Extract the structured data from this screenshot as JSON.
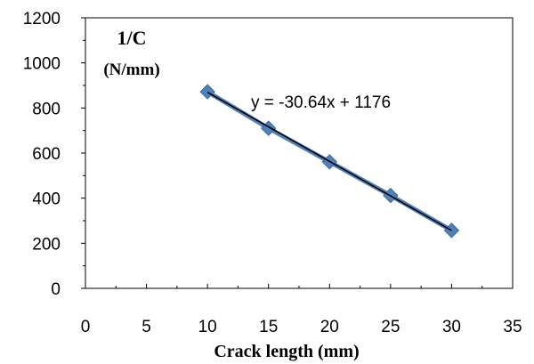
{
  "chart_data": {
    "type": "scatter",
    "title": "",
    "ylabel_line1": "1/C",
    "ylabel_line2": "(N/mm)",
    "xlabel": "Crack length (mm)",
    "xlim": [
      0,
      35
    ],
    "ylim": [
      0,
      1200
    ],
    "x_ticks": [
      0,
      5,
      10,
      15,
      20,
      25,
      30,
      35
    ],
    "y_ticks": [
      0,
      200,
      400,
      600,
      800,
      1000,
      1200
    ],
    "grid": false,
    "legend": "none",
    "series": [
      {
        "name": "",
        "marker": "diamond",
        "color": "#4f81bd",
        "points": [
          {
            "x": 10,
            "y": 872
          },
          {
            "x": 15,
            "y": 710
          },
          {
            "x": 20,
            "y": 561
          },
          {
            "x": 25,
            "y": 412
          },
          {
            "x": 30,
            "y": 257
          }
        ]
      }
    ],
    "trendline": {
      "slope": -30.64,
      "intercept": 1176,
      "x_range": [
        10,
        30
      ],
      "color": "#000000",
      "equation": "y = -30.64x + 1176"
    }
  }
}
